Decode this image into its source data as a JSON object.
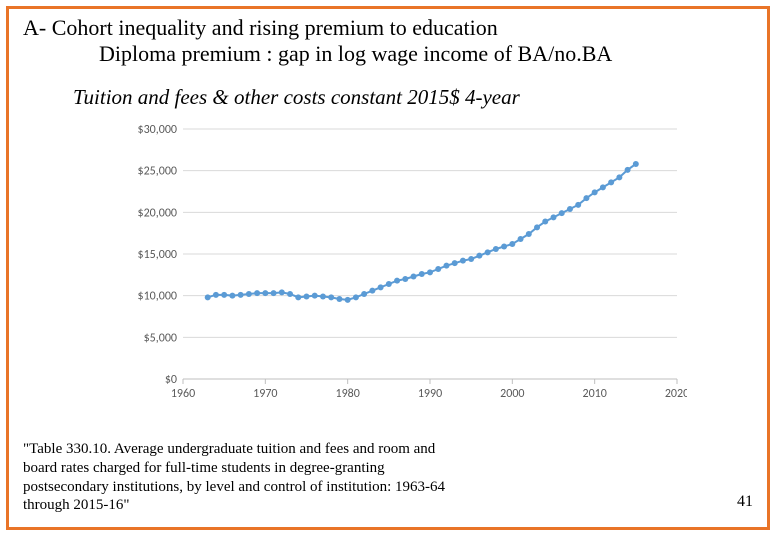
{
  "border_color": "#e97428",
  "page_number": "41",
  "title_line1": "A- Cohort inequality and rising premium to education",
  "title_line2": "Diploma premium : gap in log wage income of BA/no.BA",
  "subtitle": "Tuition and fees & other costs constant 2015$  4-year",
  "footnote": "\"Table 330.10. Average undergraduate tuition and fees and room and board rates charged for full-time students in degree-granting postsecondary institutions, by level and control of institution:               1963-64 through 2015-16\"",
  "chart": {
    "type": "line-with-markers",
    "x_label_fontsize": 12,
    "y_label_fontsize": 12,
    "label_color": "#595959",
    "grid_color": "#d9d9d9",
    "axis_color": "#bfbfbf",
    "line_color": "#5b9bd5",
    "marker_color": "#5b9bd5",
    "marker_radius": 3,
    "line_width": 2,
    "background_color": "#ffffff",
    "xlim": [
      1960,
      2020
    ],
    "ylim": [
      0,
      30000
    ],
    "xticks": [
      1960,
      1970,
      1980,
      1990,
      2000,
      2010,
      2020
    ],
    "yticks": [
      0,
      5000,
      10000,
      15000,
      20000,
      25000,
      30000
    ],
    "ytick_labels": [
      "$0",
      "$5,000",
      "$10,000",
      "$15,000",
      "$20,000",
      "$25,000",
      "$30,000"
    ],
    "x": [
      1963,
      1964,
      1965,
      1966,
      1967,
      1968,
      1969,
      1970,
      1971,
      1972,
      1973,
      1974,
      1975,
      1976,
      1977,
      1978,
      1979,
      1980,
      1981,
      1982,
      1983,
      1984,
      1985,
      1986,
      1987,
      1988,
      1989,
      1990,
      1991,
      1992,
      1993,
      1994,
      1995,
      1996,
      1997,
      1998,
      1999,
      2000,
      2001,
      2002,
      2003,
      2004,
      2005,
      2006,
      2007,
      2008,
      2009,
      2010,
      2011,
      2012,
      2013,
      2014,
      2015
    ],
    "y": [
      9800,
      10100,
      10100,
      10000,
      10100,
      10200,
      10300,
      10300,
      10300,
      10400,
      10200,
      9800,
      9900,
      10000,
      9900,
      9800,
      9600,
      9500,
      9800,
      10200,
      10600,
      11000,
      11400,
      11800,
      12000,
      12300,
      12600,
      12800,
      13200,
      13600,
      13900,
      14200,
      14400,
      14800,
      15200,
      15600,
      15900,
      16200,
      16800,
      17400,
      18200,
      18900,
      19400,
      19900,
      20400,
      20900,
      21700,
      22400,
      23000,
      23600,
      24200,
      25100,
      25800
    ]
  }
}
